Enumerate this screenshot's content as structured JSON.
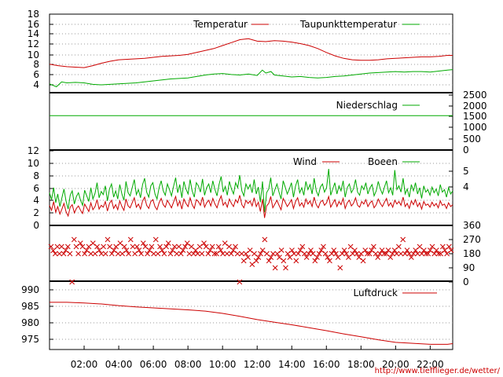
{
  "credit": "http://www.tiefflieger.de/wetter/",
  "colors": {
    "red": "#cc0000",
    "green": "#00aa00",
    "grid": "#9a9a9a",
    "frame": "#000000"
  },
  "x_ticks": [
    "02:00",
    "04:00",
    "06:00",
    "08:00",
    "10:00",
    "12:00",
    "14:00",
    "16:00",
    "18:00",
    "20:00",
    "22:00"
  ],
  "chart_data": [
    {
      "id": "temp",
      "type": "line",
      "x_unit": "hour of day",
      "xlim": [
        0,
        23.3
      ],
      "ylim": [
        2,
        18
      ],
      "y_ticks_left": [
        "4",
        "6",
        "8",
        "10",
        "12",
        "14",
        "16",
        "18"
      ],
      "grid": true,
      "legend": "top-right",
      "series": [
        {
          "name": "Temperatur",
          "color": "#cc0000",
          "x": [
            0,
            0.5,
            1,
            1.5,
            2,
            2.5,
            3,
            3.5,
            4,
            4.5,
            5,
            5.5,
            6,
            6.5,
            7,
            7.5,
            8,
            8.5,
            9,
            9.5,
            10,
            10.5,
            11,
            11.5,
            12,
            12.5,
            13,
            13.5,
            14,
            14.5,
            15,
            15.5,
            16,
            16.5,
            17,
            17.5,
            18,
            18.5,
            19,
            19.5,
            20,
            20.5,
            21,
            21.5,
            22,
            22.5,
            23,
            23.3
          ],
          "y": [
            7.8,
            7.5,
            7.3,
            7.2,
            7.1,
            7.5,
            8.0,
            8.4,
            8.7,
            8.8,
            8.9,
            9.0,
            9.2,
            9.4,
            9.5,
            9.6,
            9.8,
            10.2,
            10.6,
            11.0,
            11.6,
            12.2,
            12.8,
            13.0,
            12.5,
            12.4,
            12.6,
            12.5,
            12.3,
            12.0,
            11.6,
            11.0,
            10.2,
            9.5,
            9.0,
            8.7,
            8.6,
            8.6,
            8.7,
            8.9,
            9.0,
            9.1,
            9.2,
            9.3,
            9.3,
            9.4,
            9.6,
            9.6
          ]
        },
        {
          "name": "Taupunkttemperatur",
          "color": "#00aa00",
          "x": [
            0,
            0.4,
            0.7,
            1,
            1.5,
            2,
            2.5,
            3,
            3.5,
            4,
            4.5,
            5,
            5.5,
            6,
            6.5,
            7,
            7.5,
            8,
            8.5,
            9,
            9.5,
            10,
            10.5,
            11,
            11.5,
            12,
            12.3,
            12.5,
            12.8,
            13,
            13.5,
            14,
            14.5,
            15,
            15.5,
            16,
            16.5,
            17,
            17.5,
            18,
            18.5,
            19,
            19.5,
            20,
            20.5,
            21,
            21.5,
            22,
            22.5,
            23,
            23.3
          ],
          "y": [
            3.8,
            3.2,
            4.2,
            4.0,
            4.1,
            4.0,
            3.7,
            3.6,
            3.7,
            3.8,
            3.9,
            4.0,
            4.2,
            4.4,
            4.6,
            4.8,
            4.9,
            5.0,
            5.3,
            5.6,
            5.8,
            5.9,
            5.7,
            5.6,
            5.8,
            5.5,
            6.6,
            6.0,
            6.3,
            5.6,
            5.4,
            5.2,
            5.3,
            5.1,
            5.0,
            5.1,
            5.3,
            5.4,
            5.6,
            5.8,
            6.0,
            6.1,
            6.2,
            6.3,
            6.2,
            6.3,
            6.3,
            6.2,
            6.4,
            6.6,
            6.7
          ]
        }
      ]
    },
    {
      "id": "rain",
      "type": "line",
      "xlim": [
        0,
        23.3
      ],
      "ylim": [
        0,
        2500
      ],
      "y_ticks_right": [
        "0",
        "500",
        "1000",
        "1500",
        "2000",
        "2500"
      ],
      "legend": "top-right",
      "series": [
        {
          "name": "Niederschlag",
          "color": "#00aa00",
          "x": [
            0,
            23.3
          ],
          "y": [
            1500,
            1500
          ]
        }
      ]
    },
    {
      "id": "wind",
      "type": "line",
      "xlim": [
        0,
        23.3
      ],
      "ylim": [
        0,
        12
      ],
      "y_ticks_left": [
        "0",
        "2",
        "4",
        "6",
        "8",
        "10",
        "12"
      ],
      "y_ticks_right": [
        "4",
        "5"
      ],
      "grid": true,
      "legend": "top-right",
      "series": [
        {
          "name": "Wind",
          "color": "#cc0000",
          "y": [
            3.2,
            2.4,
            3.8,
            2.1,
            3.0,
            1.8,
            2.6,
            3.5,
            2.2,
            1.5,
            2.9,
            3.3,
            2.0,
            2.7,
            3.1,
            2.4,
            1.9,
            3.4,
            2.8,
            2.2,
            3.6,
            2.5,
            3.0,
            4.1,
            2.6,
            3.2,
            2.9,
            3.8,
            2.3,
            3.5,
            4.0,
            2.7,
            3.3,
            2.5,
            3.9,
            3.0,
            2.4,
            4.2,
            3.1,
            2.8,
            3.6,
            4.4,
            2.9,
            3.4,
            2.6,
            3.9,
            4.5,
            3.2,
            2.7,
            3.8,
            4.1,
            3.0,
            2.5,
            3.6,
            4.3,
            3.3,
            2.9,
            4.0,
            3.4,
            2.8,
            3.7,
            4.6,
            3.1,
            3.9,
            2.6,
            4.2,
            3.5,
            3.0,
            4.4,
            3.3,
            2.7,
            4.1,
            3.8,
            3.2,
            4.5,
            2.9,
            3.6,
            4.0,
            3.1,
            4.3,
            3.4,
            2.8,
            3.9,
            4.7,
            3.2,
            3.7,
            2.9,
            4.2,
            3.5,
            3.0,
            4.1,
            3.6,
            4.8,
            3.3,
            2.8,
            4.0,
            3.5,
            3.9,
            3.1,
            4.4,
            3.0,
            3.7,
            2.2,
            4.2,
            1.2,
            3.1,
            3.5,
            4.6,
            2.8,
            3.4,
            4.0,
            3.2,
            2.5,
            4.3,
            3.7,
            3.0,
            3.5,
            4.1,
            2.7,
            3.8,
            4.4,
            3.1,
            3.6,
            2.9,
            4.2,
            3.4,
            3.9,
            3.0,
            4.5,
            3.3,
            2.8,
            3.7,
            4.0,
            3.2,
            3.6,
            4.6,
            2.9,
            3.5,
            4.1,
            3.0,
            3.8,
            3.3,
            4.3,
            2.7,
            3.6,
            4.0,
            3.1,
            3.5,
            4.4,
            3.2,
            2.9,
            3.8,
            3.4,
            4.1,
            3.0,
            3.6,
            3.9,
            2.8,
            3.3,
            4.2,
            3.5,
            3.0,
            3.7,
            4.3,
            3.1,
            3.6,
            2.9,
            4.0,
            3.4,
            3.8,
            3.2,
            4.5,
            3.0,
            3.5,
            2.7,
            3.9,
            3.3,
            4.1,
            3.0,
            3.6,
            2.6,
            3.8,
            3.2,
            3.4,
            2.9,
            3.7,
            3.1,
            3.5,
            2.8,
            3.9,
            3.2,
            3.4,
            2.7,
            3.6,
            3.0,
            3.3
          ]
        },
        {
          "name": "Boeen",
          "color": "#00aa00",
          "y": [
            5.2,
            4.1,
            6.0,
            3.6,
            5.0,
            3.0,
            4.4,
            5.8,
            3.9,
            2.6,
            4.8,
            5.5,
            3.4,
            4.6,
            5.2,
            4.0,
            3.2,
            5.6,
            4.7,
            3.8,
            6.0,
            4.2,
            5.1,
            6.8,
            4.4,
            5.4,
            4.9,
            6.3,
            3.9,
            5.8,
            6.6,
            4.5,
            5.5,
            4.2,
            6.5,
            5.0,
            4.0,
            7.0,
            5.2,
            4.7,
            6.0,
            7.3,
            4.9,
            5.7,
            4.4,
            6.5,
            7.5,
            5.3,
            4.5,
            6.3,
            6.8,
            5.0,
            4.2,
            6.0,
            7.1,
            5.5,
            4.8,
            6.6,
            5.7,
            4.7,
            6.2,
            7.6,
            5.2,
            6.5,
            4.4,
            7.0,
            5.8,
            5.0,
            7.3,
            5.5,
            4.5,
            6.8,
            6.3,
            5.3,
            7.4,
            4.8,
            6.0,
            6.6,
            5.2,
            7.1,
            5.7,
            4.7,
            6.5,
            7.8,
            5.3,
            6.2,
            4.8,
            7.0,
            5.8,
            5.0,
            6.8,
            6.0,
            8.0,
            5.5,
            4.7,
            6.6,
            5.8,
            6.5,
            5.2,
            7.3,
            5.0,
            6.1,
            3.7,
            7.0,
            2.1,
            5.2,
            5.8,
            7.6,
            4.7,
            5.7,
            6.6,
            5.3,
            4.2,
            7.1,
            6.1,
            5.0,
            5.8,
            6.8,
            4.5,
            6.3,
            7.3,
            5.2,
            6.0,
            4.8,
            7.0,
            5.7,
            6.5,
            5.0,
            7.5,
            5.5,
            4.7,
            6.1,
            6.6,
            5.3,
            6.0,
            9.0,
            4.8,
            5.8,
            6.8,
            5.0,
            6.3,
            5.5,
            7.1,
            4.5,
            6.0,
            6.6,
            5.2,
            5.8,
            7.3,
            5.3,
            4.8,
            6.3,
            5.7,
            6.8,
            5.0,
            6.0,
            6.5,
            4.7,
            5.5,
            7.0,
            5.8,
            5.0,
            6.1,
            7.1,
            5.2,
            6.0,
            4.8,
            8.8,
            5.7,
            6.3,
            5.3,
            7.5,
            5.0,
            5.8,
            4.5,
            6.5,
            5.5,
            6.8,
            5.0,
            6.0,
            4.3,
            6.3,
            5.3,
            5.7,
            4.8,
            6.1,
            5.2,
            5.8,
            4.7,
            6.5,
            5.3,
            5.7,
            4.5,
            6.0,
            5.0,
            5.5
          ]
        }
      ]
    },
    {
      "id": "dir",
      "type": "scatter",
      "xlim": [
        0,
        23.3
      ],
      "ylim": [
        0,
        360
      ],
      "y_ticks_right": [
        "0",
        "90",
        "180",
        "270",
        "360"
      ],
      "series": [
        {
          "name": "",
          "color": "#cc0000",
          "y": [
            225,
            200,
            180,
            225,
            180,
            225,
            180,
            202,
            225,
            180,
            0,
            270,
            225,
            180,
            247,
            225,
            180,
            202,
            225,
            180,
            247,
            180,
            225,
            202,
            180,
            225,
            180,
            270,
            225,
            180,
            202,
            225,
            180,
            247,
            180,
            225,
            202,
            180,
            270,
            225,
            180,
            225,
            202,
            180,
            247,
            225,
            180,
            202,
            225,
            180,
            270,
            180,
            225,
            202,
            180,
            225,
            247,
            180,
            202,
            225,
            180,
            225,
            180,
            202,
            225,
            247,
            180,
            225,
            180,
            202,
            180,
            225,
            180,
            247,
            225,
            180,
            202,
            225,
            180,
            180,
            225,
            202,
            180,
            247,
            180,
            225,
            180,
            202,
            225,
            180,
            0,
            180,
            135,
            180,
            157,
            202,
            112,
            180,
            135,
            157,
            180,
            202,
            270,
            180,
            135,
            157,
            180,
            90,
            180,
            157,
            202,
            135,
            90,
            180,
            157,
            202,
            180,
            135,
            180,
            202,
            225,
            180,
            157,
            180,
            202,
            180,
            135,
            157,
            180,
            202,
            225,
            180,
            157,
            135,
            180,
            202,
            180,
            157,
            90,
            180,
            202,
            180,
            157,
            225,
            180,
            202,
            180,
            157,
            180,
            135,
            202,
            180,
            180,
            202,
            225,
            180,
            157,
            180,
            202,
            180,
            180,
            202,
            157,
            180,
            202,
            180,
            225,
            180,
            270,
            180,
            202,
            180,
            157,
            180,
            202,
            180,
            225,
            180,
            202,
            180,
            180,
            202,
            225,
            180,
            202,
            180,
            180,
            225,
            202,
            180,
            225,
            202
          ]
        }
      ]
    },
    {
      "id": "press",
      "type": "line",
      "xlim": [
        0,
        23.3
      ],
      "ylim": [
        971,
        992
      ],
      "y_ticks_left": [
        "975",
        "980",
        "985",
        "990"
      ],
      "grid": true,
      "legend": "top-right",
      "series": [
        {
          "name": "Luftdruck",
          "color": "#cc0000",
          "x": [
            0,
            1,
            2,
            3,
            4,
            5,
            6,
            7,
            8,
            9,
            10,
            11,
            12,
            13,
            14,
            15,
            16,
            17,
            18,
            19,
            20,
            21,
            22,
            23,
            23.3
          ],
          "y": [
            985.5,
            985.5,
            985.3,
            985.0,
            984.5,
            984.1,
            983.8,
            983.5,
            983.2,
            982.8,
            982.1,
            981.2,
            980.2,
            979.4,
            978.6,
            977.7,
            976.8,
            975.8,
            974.9,
            974.0,
            973.2,
            972.9,
            972.6,
            972.6,
            972.8
          ]
        }
      ]
    }
  ]
}
